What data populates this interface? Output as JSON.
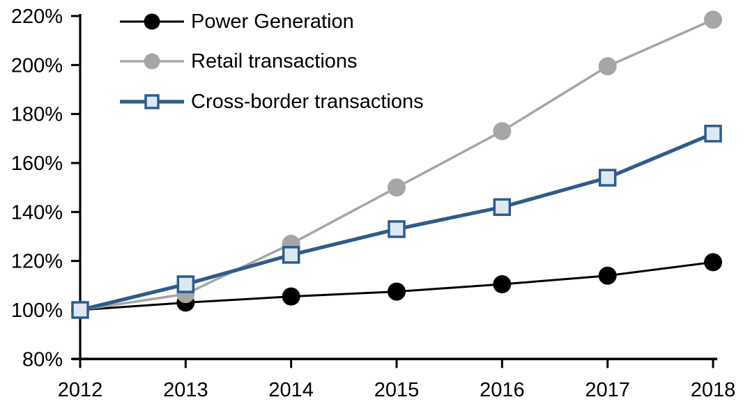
{
  "chart_data": {
    "type": "line",
    "title": "",
    "xlabel": "",
    "ylabel": "",
    "categories": [
      "2012",
      "2013",
      "2014",
      "2015",
      "2016",
      "2017",
      "2018"
    ],
    "series": [
      {
        "name": "Power Generation",
        "values": [
          100,
          103,
          105.5,
          107.5,
          110.5,
          114,
          119.5
        ],
        "color": "#000000",
        "marker": "circle",
        "marker_fill": "#000000",
        "line_width": 3
      },
      {
        "name": "Retail transactions",
        "values": [
          100,
          106.5,
          127,
          150,
          173,
          199.5,
          218.5
        ],
        "color": "#a6a6a6",
        "marker": "circle",
        "marker_fill": "#a6a6a6",
        "line_width": 3.5
      },
      {
        "name": "Cross-border transactions",
        "values": [
          100,
          110.5,
          122.5,
          133,
          142,
          154,
          172
        ],
        "color": "#2e5c8a",
        "marker": "square",
        "marker_fill": "#dce9f5",
        "line_width": 5.2
      }
    ],
    "ylim": [
      80,
      220
    ],
    "ytick_step": 20,
    "ytick_suffix": "%",
    "axis_color": "#000000",
    "background": "#ffffff",
    "grid": false,
    "legend_position": "top-left"
  }
}
